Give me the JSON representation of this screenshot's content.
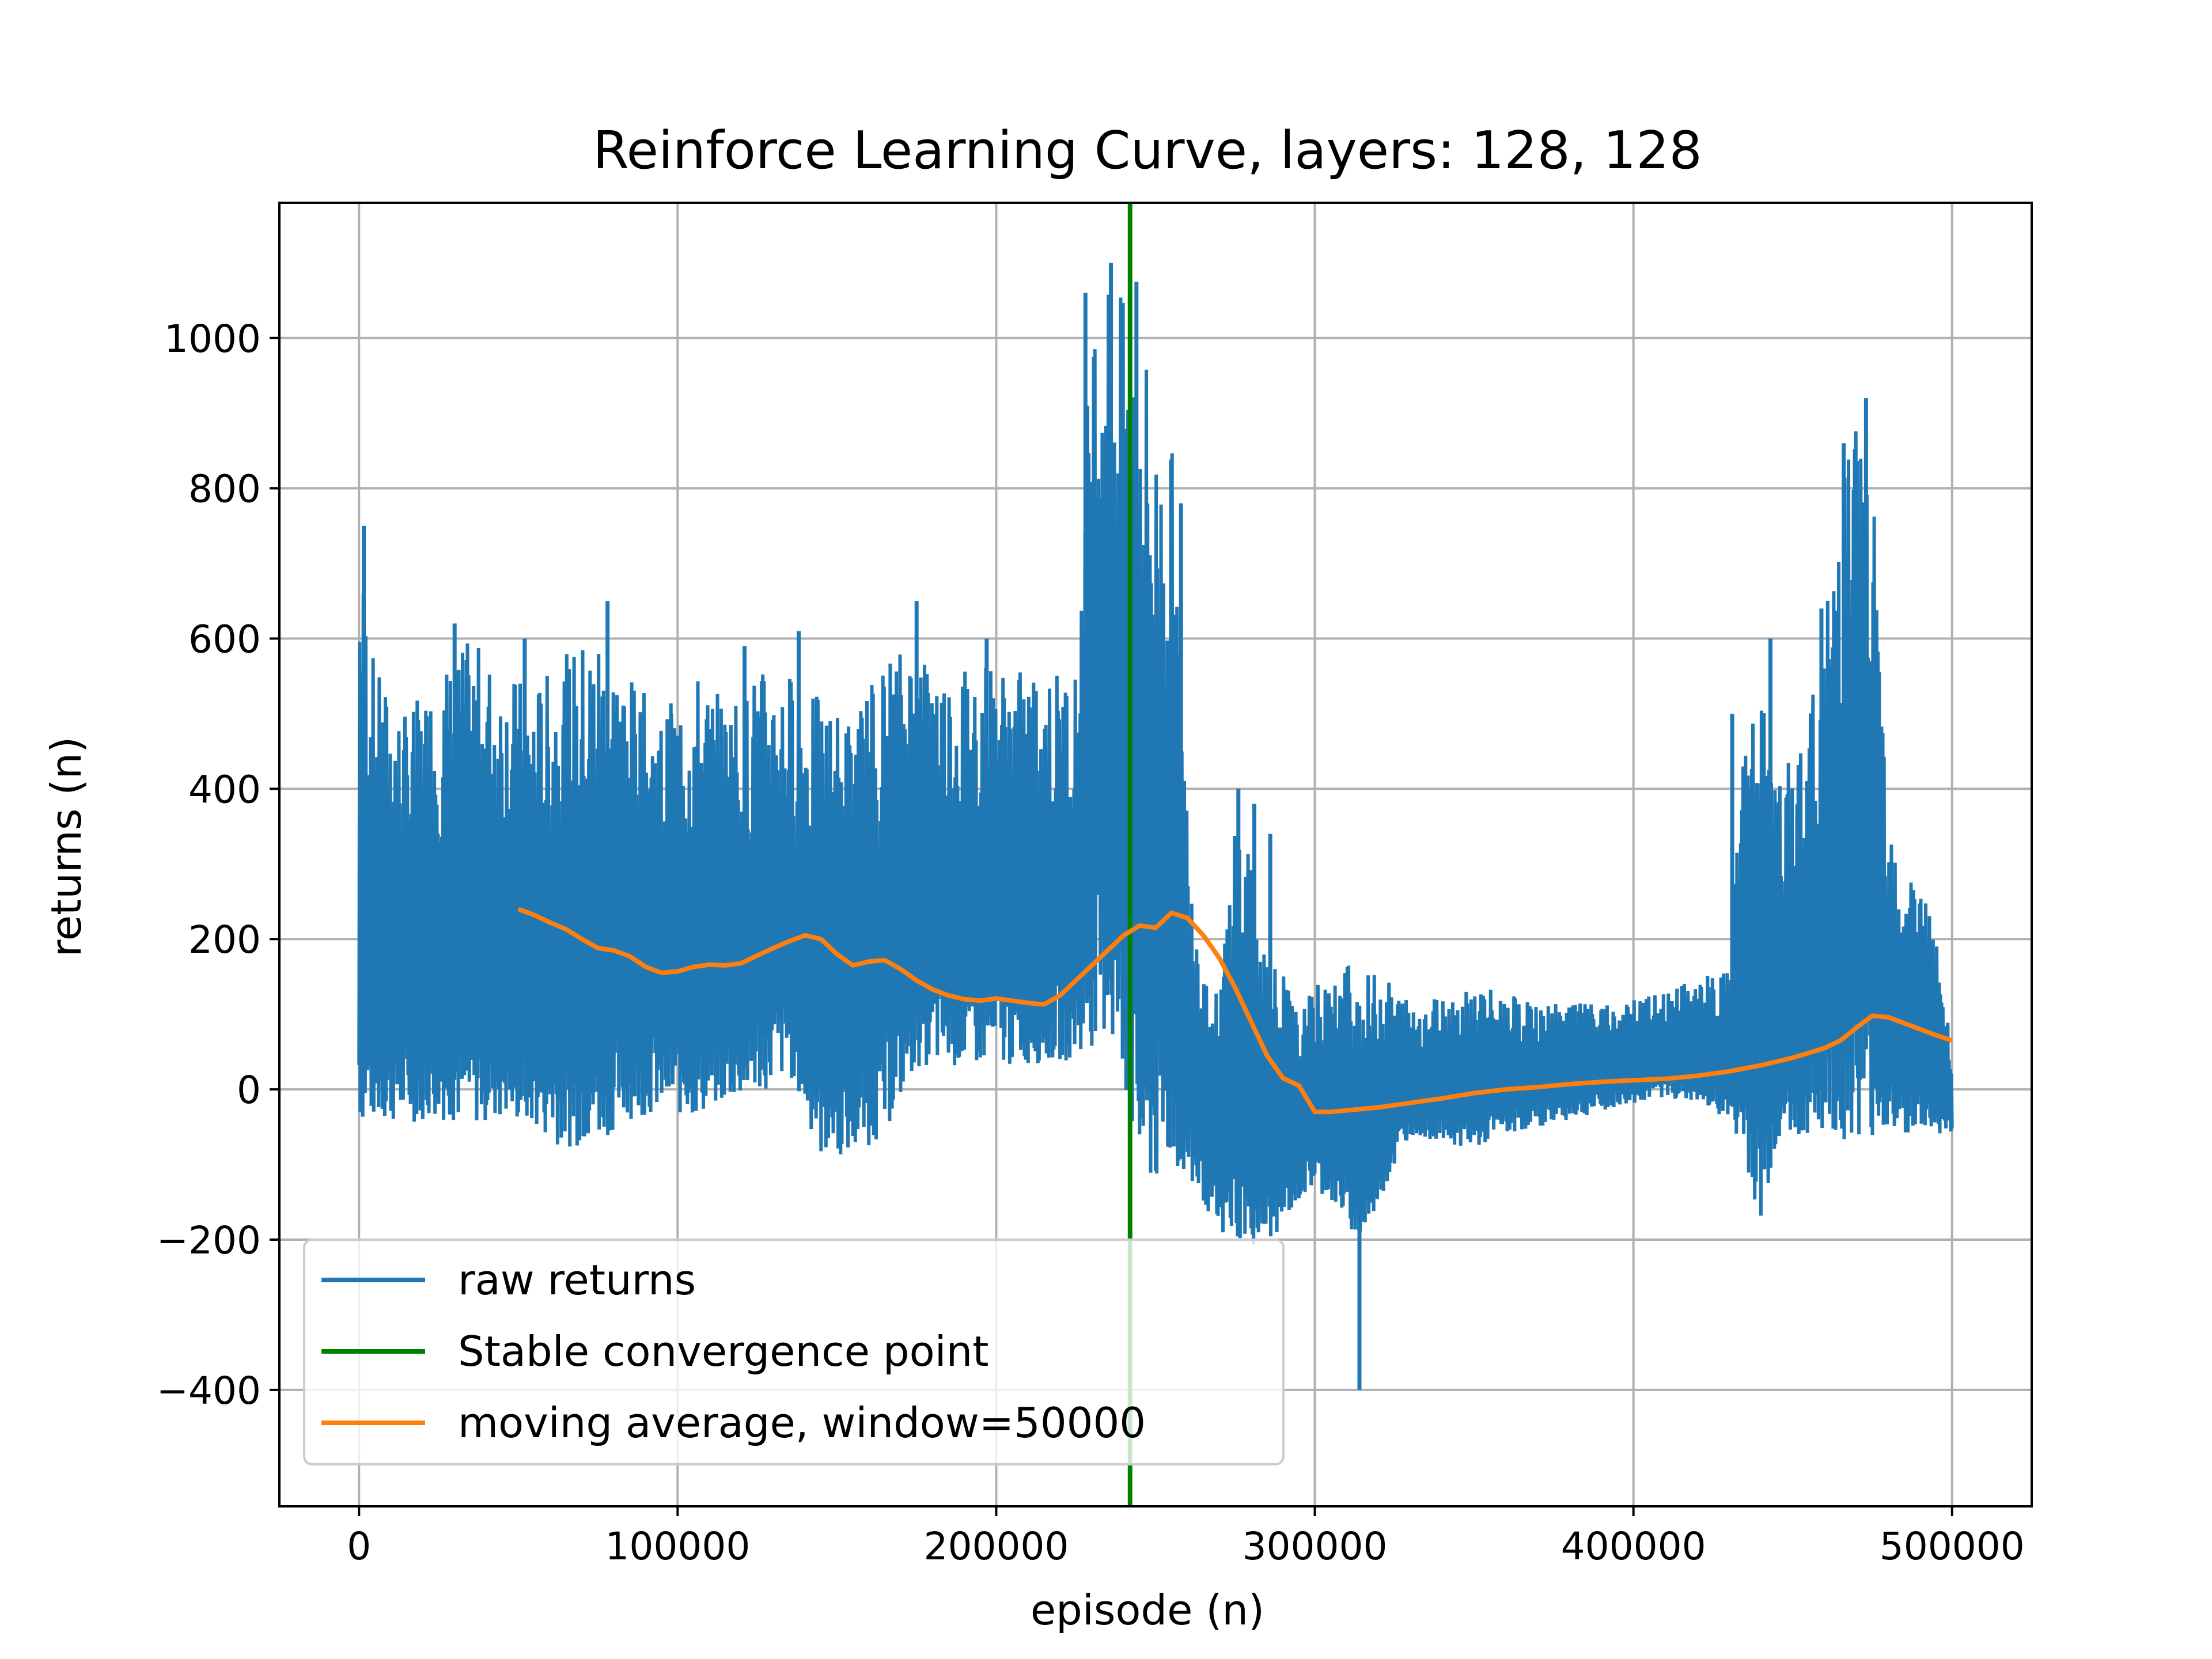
{
  "chart_data": {
    "type": "line",
    "title": "Reinforce Learning Curve, layers: 128, 128",
    "xlabel": "episode (n)",
    "ylabel": "returns (n)",
    "xlim": [
      -25000,
      525000
    ],
    "ylim": [
      -555,
      1180
    ],
    "x_ticks": [
      0,
      100000,
      200000,
      300000,
      400000,
      500000
    ],
    "x_tick_labels": [
      "0",
      "100000",
      "200000",
      "300000",
      "400000",
      "500000"
    ],
    "y_ticks": [
      -400,
      -200,
      0,
      200,
      400,
      600,
      800,
      1000
    ],
    "y_tick_labels": [
      "−400",
      "−200",
      "0",
      "200",
      "400",
      "600",
      "800",
      "1000"
    ],
    "grid": true,
    "legend_position": "lower-left",
    "colors": {
      "raw": "#1f77b4",
      "convergence": "#008000",
      "moving_average": "#ff7f0e"
    },
    "series": [
      {
        "name": "raw returns",
        "style": "band",
        "x": [
          0,
          5000,
          15000,
          25000,
          35000,
          45000,
          55000,
          65000,
          75000,
          85000,
          95000,
          105000,
          115000,
          125000,
          135000,
          145000,
          155000,
          165000,
          175000,
          185000,
          195000,
          205000,
          215000,
          225000,
          230000,
          235000,
          240000,
          245000,
          250000,
          255000,
          260000,
          265000,
          270000,
          275000,
          280000,
          285000,
          290000,
          295000,
          300000,
          305000,
          310000,
          315000,
          320000,
          330000,
          340000,
          350000,
          360000,
          370000,
          380000,
          390000,
          400000,
          410000,
          420000,
          430000,
          435000,
          440000,
          445000,
          450000,
          455000,
          460000,
          465000,
          470000,
          475000,
          480000,
          485000,
          490000,
          495000,
          500000
        ],
        "low": [
          -50,
          -45,
          -45,
          -40,
          -50,
          -40,
          -55,
          -80,
          -70,
          -40,
          -30,
          -40,
          -20,
          -10,
          20,
          -90,
          -90,
          -60,
          30,
          30,
          30,
          30,
          35,
          40,
          55,
          70,
          0,
          -130,
          -140,
          -100,
          -130,
          -150,
          -200,
          -200,
          -210,
          -210,
          -180,
          -150,
          -130,
          -150,
          -180,
          -210,
          -150,
          -60,
          -70,
          -80,
          -60,
          -50,
          -40,
          -30,
          -20,
          -10,
          -20,
          -40,
          -100,
          -180,
          -80,
          -70,
          -60,
          -60,
          -70,
          -60,
          -70,
          -60,
          -60,
          -60,
          -60,
          -60
        ],
        "high": [
          750,
          560,
          500,
          560,
          600,
          560,
          540,
          580,
          620,
          550,
          500,
          560,
          520,
          560,
          560,
          520,
          500,
          580,
          600,
          560,
          580,
          560,
          560,
          560,
          1060,
          1100,
          1050,
          1075,
          870,
          870,
          400,
          180,
          120,
          400,
          300,
          200,
          160,
          100,
          140,
          140,
          180,
          150,
          160,
          120,
          130,
          140,
          130,
          110,
          120,
          110,
          120,
          130,
          150,
          160,
          500,
          550,
          400,
          450,
          500,
          620,
          850,
          920,
          810,
          400,
          300,
          300,
          200,
          50
        ],
        "spikes_x": [
          1500,
          30000,
          52000,
          78000,
          98000,
          121000,
          138000,
          175000,
          197000,
          228000,
          236000,
          244000,
          258000,
          276000,
          281000,
          286000,
          305000,
          314000,
          431000,
          443000,
          459000,
          466000,
          473000
        ],
        "spikes_y": [
          750,
          620,
          600,
          650,
          500,
          590,
          610,
          650,
          600,
          1060,
          1100,
          1075,
          780,
          400,
          380,
          340,
          110,
          -400,
          500,
          600,
          640,
          860,
          920
        ]
      },
      {
        "name": "Stable convergence point",
        "style": "vline",
        "x": [
          242000
        ]
      },
      {
        "name": "moving average, window=50000",
        "style": "line",
        "x": [
          50000,
          55000,
          60000,
          65000,
          70000,
          75000,
          80000,
          85000,
          90000,
          95000,
          100000,
          105000,
          110000,
          115000,
          120000,
          125000,
          130000,
          135000,
          140000,
          145000,
          150000,
          155000,
          160000,
          165000,
          170000,
          175000,
          180000,
          185000,
          190000,
          195000,
          200000,
          205000,
          210000,
          215000,
          220000,
          225000,
          230000,
          235000,
          240000,
          245000,
          250000,
          255000,
          260000,
          265000,
          270000,
          275000,
          280000,
          285000,
          290000,
          295000,
          300000,
          305000,
          310000,
          320000,
          330000,
          340000,
          350000,
          360000,
          370000,
          380000,
          390000,
          400000,
          410000,
          420000,
          430000,
          440000,
          450000,
          460000,
          465000,
          470000,
          475000,
          480000,
          485000,
          490000,
          495000,
          500000
        ],
        "y": [
          240,
          232,
          222,
          213,
          200,
          188,
          185,
          177,
          163,
          155,
          157,
          163,
          166,
          165,
          168,
          178,
          188,
          197,
          205,
          200,
          180,
          165,
          170,
          172,
          160,
          145,
          133,
          125,
          120,
          118,
          121,
          118,
          115,
          113,
          125,
          145,
          165,
          185,
          205,
          218,
          215,
          235,
          228,
          205,
          175,
          135,
          90,
          45,
          15,
          5,
          -30,
          -30,
          -28,
          -24,
          -18,
          -12,
          -5,
          0,
          3,
          7,
          10,
          12,
          14,
          18,
          24,
          32,
          42,
          55,
          65,
          82,
          98,
          96,
          88,
          80,
          72,
          65
        ]
      }
    ]
  }
}
